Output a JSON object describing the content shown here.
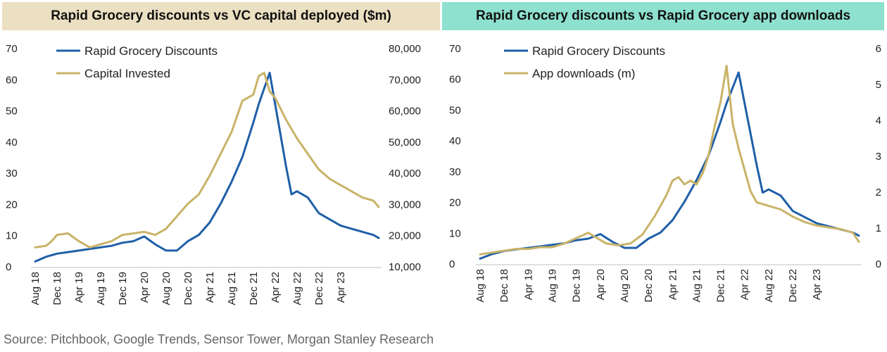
{
  "chart_data": [
    {
      "type": "line",
      "title": "Rapid Grocery discounts vs VC capital deployed ($m)",
      "x_ticks": [
        "Aug 18",
        "Dec 18",
        "Apr 19",
        "Aug 19",
        "Dec 19",
        "Apr 20",
        "Aug 20",
        "Dec 20",
        "Apr 21",
        "Aug 21",
        "Dec 21",
        "Apr 22",
        "Aug 22",
        "Dec 22",
        "Apr 23"
      ],
      "x_range": [
        "Aug 18",
        "Nov 23"
      ],
      "y_left": {
        "range": [
          0,
          70
        ],
        "ticks": [
          "0",
          "10",
          "20",
          "30",
          "40",
          "50",
          "60",
          "70"
        ]
      },
      "y_right": {
        "range": [
          10000,
          80000
        ],
        "ticks": [
          "10,000",
          "20,000",
          "30,000",
          "40,000",
          "50,000",
          "60,000",
          "70,000",
          "80,000"
        ]
      },
      "legend_position": "top-left",
      "grid": false,
      "series": [
        {
          "name": "Rapid Grocery Discounts",
          "axis": "left",
          "color": "#1f5fa8",
          "points": [
            [
              "2018-08",
              1.5
            ],
            [
              "2018-10",
              3
            ],
            [
              "2018-12",
              4
            ],
            [
              "2019-02",
              4.5
            ],
            [
              "2019-04",
              5
            ],
            [
              "2019-06",
              5.5
            ],
            [
              "2019-08",
              6
            ],
            [
              "2019-10",
              6.5
            ],
            [
              "2019-12",
              7.5
            ],
            [
              "2020-02",
              8
            ],
            [
              "2020-04",
              9.5
            ],
            [
              "2020-06",
              7
            ],
            [
              "2020-08",
              5
            ],
            [
              "2020-10",
              5
            ],
            [
              "2020-12",
              8
            ],
            [
              "2021-02",
              10
            ],
            [
              "2021-04",
              14
            ],
            [
              "2021-06",
              20
            ],
            [
              "2021-08",
              27
            ],
            [
              "2021-10",
              35
            ],
            [
              "2021-12",
              46
            ],
            [
              "2022-01",
              52
            ],
            [
              "2022-02",
              57
            ],
            [
              "2022-03",
              62
            ],
            [
              "2022-04",
              52
            ],
            [
              "2022-05",
              42
            ],
            [
              "2022-06",
              32
            ],
            [
              "2022-07",
              23
            ],
            [
              "2022-08",
              24
            ],
            [
              "2022-10",
              22
            ],
            [
              "2022-12",
              17
            ],
            [
              "2023-02",
              15
            ],
            [
              "2023-04",
              13
            ],
            [
              "2023-06",
              12
            ],
            [
              "2023-08",
              11
            ],
            [
              "2023-10",
              10
            ],
            [
              "2023-11",
              9
            ]
          ]
        },
        {
          "name": "Capital Invested",
          "axis": "right",
          "color": "#c9b368",
          "points": [
            [
              "2018-08",
              16000
            ],
            [
              "2018-10",
              16500
            ],
            [
              "2018-11",
              18000
            ],
            [
              "2018-12",
              20000
            ],
            [
              "2019-02",
              20500
            ],
            [
              "2019-04",
              18000
            ],
            [
              "2019-06",
              16000
            ],
            [
              "2019-08",
              17000
            ],
            [
              "2019-10",
              18000
            ],
            [
              "2019-12",
              20000
            ],
            [
              "2020-02",
              20500
            ],
            [
              "2020-04",
              21000
            ],
            [
              "2020-06",
              20000
            ],
            [
              "2020-08",
              22000
            ],
            [
              "2020-10",
              26000
            ],
            [
              "2020-12",
              30000
            ],
            [
              "2021-02",
              33000
            ],
            [
              "2021-04",
              39000
            ],
            [
              "2021-06",
              46000
            ],
            [
              "2021-08",
              53000
            ],
            [
              "2021-10",
              63000
            ],
            [
              "2021-12",
              65000
            ],
            [
              "2022-01",
              71000
            ],
            [
              "2022-02",
              72000
            ],
            [
              "2022-03",
              66000
            ],
            [
              "2022-04",
              64000
            ],
            [
              "2022-06",
              57000
            ],
            [
              "2022-08",
              51000
            ],
            [
              "2022-10",
              46000
            ],
            [
              "2022-12",
              41000
            ],
            [
              "2023-02",
              38000
            ],
            [
              "2023-04",
              36000
            ],
            [
              "2023-06",
              34000
            ],
            [
              "2023-08",
              32000
            ],
            [
              "2023-10",
              31000
            ],
            [
              "2023-11",
              29000
            ]
          ]
        }
      ]
    },
    {
      "type": "line",
      "title": "Rapid Grocery discounts vs Rapid Grocery app downloads",
      "x_ticks": [
        "Aug 18",
        "Dec 18",
        "Apr 19",
        "Aug 19",
        "Dec 19",
        "Apr 20",
        "Aug 20",
        "Dec 20",
        "Apr 21",
        "Aug 21",
        "Dec 21",
        "Apr 22",
        "Aug 22",
        "Dec 22",
        "Apr 23"
      ],
      "x_range": [
        "Aug 18",
        "Nov 23"
      ],
      "y_left": {
        "range": [
          0,
          70
        ],
        "ticks": [
          "0",
          "10",
          "20",
          "30",
          "40",
          "50",
          "60",
          "70"
        ]
      },
      "y_right": {
        "range": [
          0,
          6
        ],
        "ticks": [
          "0",
          "1",
          "2",
          "3",
          "4",
          "5",
          "6"
        ]
      },
      "legend_position": "top-left",
      "grid": false,
      "series": [
        {
          "name": "Rapid Grocery Discounts",
          "axis": "left",
          "color": "#1f5fa8",
          "points": [
            [
              "2018-08",
              1.5
            ],
            [
              "2018-10",
              3
            ],
            [
              "2018-12",
              4
            ],
            [
              "2019-02",
              4.5
            ],
            [
              "2019-04",
              5
            ],
            [
              "2019-06",
              5.5
            ],
            [
              "2019-08",
              6
            ],
            [
              "2019-10",
              6.5
            ],
            [
              "2019-12",
              7.5
            ],
            [
              "2020-02",
              8
            ],
            [
              "2020-04",
              9.5
            ],
            [
              "2020-06",
              7
            ],
            [
              "2020-08",
              5
            ],
            [
              "2020-10",
              5
            ],
            [
              "2020-12",
              8
            ],
            [
              "2021-02",
              10
            ],
            [
              "2021-04",
              14
            ],
            [
              "2021-06",
              20
            ],
            [
              "2021-08",
              27
            ],
            [
              "2021-10",
              35
            ],
            [
              "2021-12",
              46
            ],
            [
              "2022-01",
              52
            ],
            [
              "2022-02",
              57
            ],
            [
              "2022-03",
              62
            ],
            [
              "2022-04",
              52
            ],
            [
              "2022-05",
              42
            ],
            [
              "2022-06",
              32
            ],
            [
              "2022-07",
              23
            ],
            [
              "2022-08",
              24
            ],
            [
              "2022-10",
              22
            ],
            [
              "2022-12",
              17
            ],
            [
              "2023-02",
              15
            ],
            [
              "2023-04",
              13
            ],
            [
              "2023-06",
              12
            ],
            [
              "2023-08",
              11
            ],
            [
              "2023-10",
              10
            ],
            [
              "2023-11",
              9
            ]
          ]
        },
        {
          "name": "App downloads (m)",
          "axis": "right",
          "color": "#c9b368",
          "points": [
            [
              "2018-08",
              0.25
            ],
            [
              "2018-10",
              0.3
            ],
            [
              "2018-12",
              0.35
            ],
            [
              "2019-02",
              0.4
            ],
            [
              "2019-04",
              0.4
            ],
            [
              "2019-06",
              0.45
            ],
            [
              "2019-08",
              0.45
            ],
            [
              "2019-10",
              0.55
            ],
            [
              "2019-12",
              0.7
            ],
            [
              "2020-02",
              0.85
            ],
            [
              "2020-03",
              0.75
            ],
            [
              "2020-05",
              0.55
            ],
            [
              "2020-07",
              0.5
            ],
            [
              "2020-09",
              0.55
            ],
            [
              "2020-11",
              0.8
            ],
            [
              "2021-01",
              1.3
            ],
            [
              "2021-03",
              1.9
            ],
            [
              "2021-04",
              2.3
            ],
            [
              "2021-05",
              2.4
            ],
            [
              "2021-06",
              2.2
            ],
            [
              "2021-07",
              2.3
            ],
            [
              "2021-08",
              2.2
            ],
            [
              "2021-09",
              2.5
            ],
            [
              "2021-10",
              3.0
            ],
            [
              "2021-11",
              3.8
            ],
            [
              "2021-12",
              4.5
            ],
            [
              "2022-01",
              5.5
            ],
            [
              "2022-02",
              3.9
            ],
            [
              "2022-03",
              3.2
            ],
            [
              "2022-04",
              2.6
            ],
            [
              "2022-05",
              2.0
            ],
            [
              "2022-06",
              1.7
            ],
            [
              "2022-08",
              1.6
            ],
            [
              "2022-10",
              1.5
            ],
            [
              "2022-12",
              1.3
            ],
            [
              "2023-02",
              1.15
            ],
            [
              "2023-04",
              1.05
            ],
            [
              "2023-06",
              1.0
            ],
            [
              "2023-08",
              0.95
            ],
            [
              "2023-10",
              0.85
            ],
            [
              "2023-11",
              0.6
            ]
          ]
        }
      ]
    }
  ],
  "source": "Source: Pitchbook, Google Trends, Sensor Tower, Morgan Stanley Research"
}
